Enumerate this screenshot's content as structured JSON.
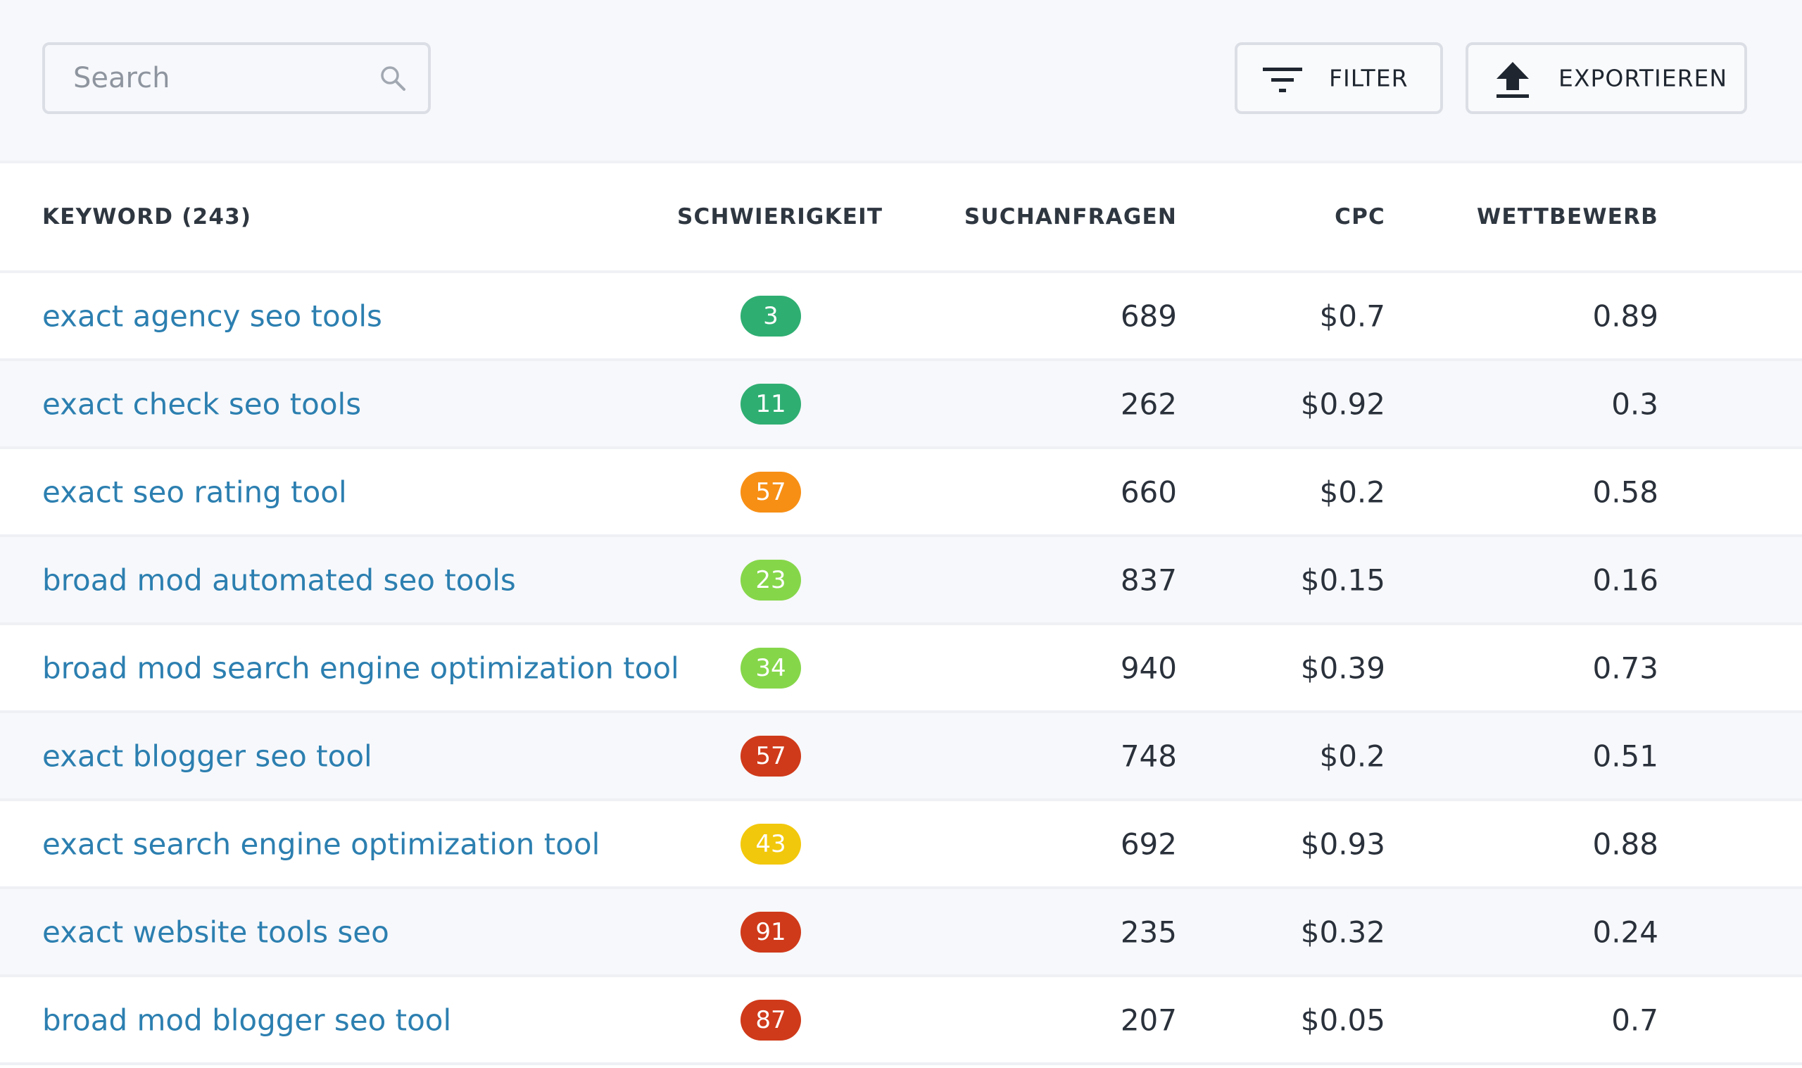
{
  "search": {
    "placeholder": "Search"
  },
  "toolbar": {
    "filter_label": "FILTER",
    "export_label": "EXPORTIEREN",
    "filter_icon": "filter-icon",
    "export_icon": "upload-icon"
  },
  "table": {
    "headers": {
      "keyword": "KEYWORD (243)",
      "difficulty": "SCHWIERIGKEIT",
      "volume": "SUCHANFRAGEN",
      "cpc": "CPC",
      "competition": "WETTBEWERB"
    },
    "rows": [
      {
        "keyword": "exact agency seo tools",
        "difficulty": "3",
        "difficulty_color": "#2fae72",
        "volume": "689",
        "cpc": "$0.7",
        "competition": "0.89"
      },
      {
        "keyword": "exact check seo tools",
        "difficulty": "11",
        "difficulty_color": "#2fae72",
        "volume": "262",
        "cpc": "$0.92",
        "competition": "0.3"
      },
      {
        "keyword": "exact seo rating tool",
        "difficulty": "57",
        "difficulty_color": "#f78f15",
        "volume": "660",
        "cpc": "$0.2",
        "competition": "0.58"
      },
      {
        "keyword": "broad mod automated seo tools",
        "difficulty": "23",
        "difficulty_color": "#86d64a",
        "volume": "837",
        "cpc": "$0.15",
        "competition": "0.16"
      },
      {
        "keyword": "broad mod search engine optimization tool",
        "difficulty": "34",
        "difficulty_color": "#86d64a",
        "volume": "940",
        "cpc": "$0.39",
        "competition": "0.73"
      },
      {
        "keyword": "exact blogger seo tool",
        "difficulty": "57",
        "difficulty_color": "#cf3a1a",
        "volume": "748",
        "cpc": "$0.2",
        "competition": "0.51"
      },
      {
        "keyword": "exact search engine optimization tool",
        "difficulty": "43",
        "difficulty_color": "#f2c80c",
        "volume": "692",
        "cpc": "$0.93",
        "competition": "0.88"
      },
      {
        "keyword": "exact website tools seo",
        "difficulty": "91",
        "difficulty_color": "#cf3a1a",
        "volume": "235",
        "cpc": "$0.32",
        "competition": "0.24"
      },
      {
        "keyword": "broad mod blogger seo tool",
        "difficulty": "87",
        "difficulty_color": "#cf3a1a",
        "volume": "207",
        "cpc": "$0.05",
        "competition": "0.7"
      }
    ]
  }
}
